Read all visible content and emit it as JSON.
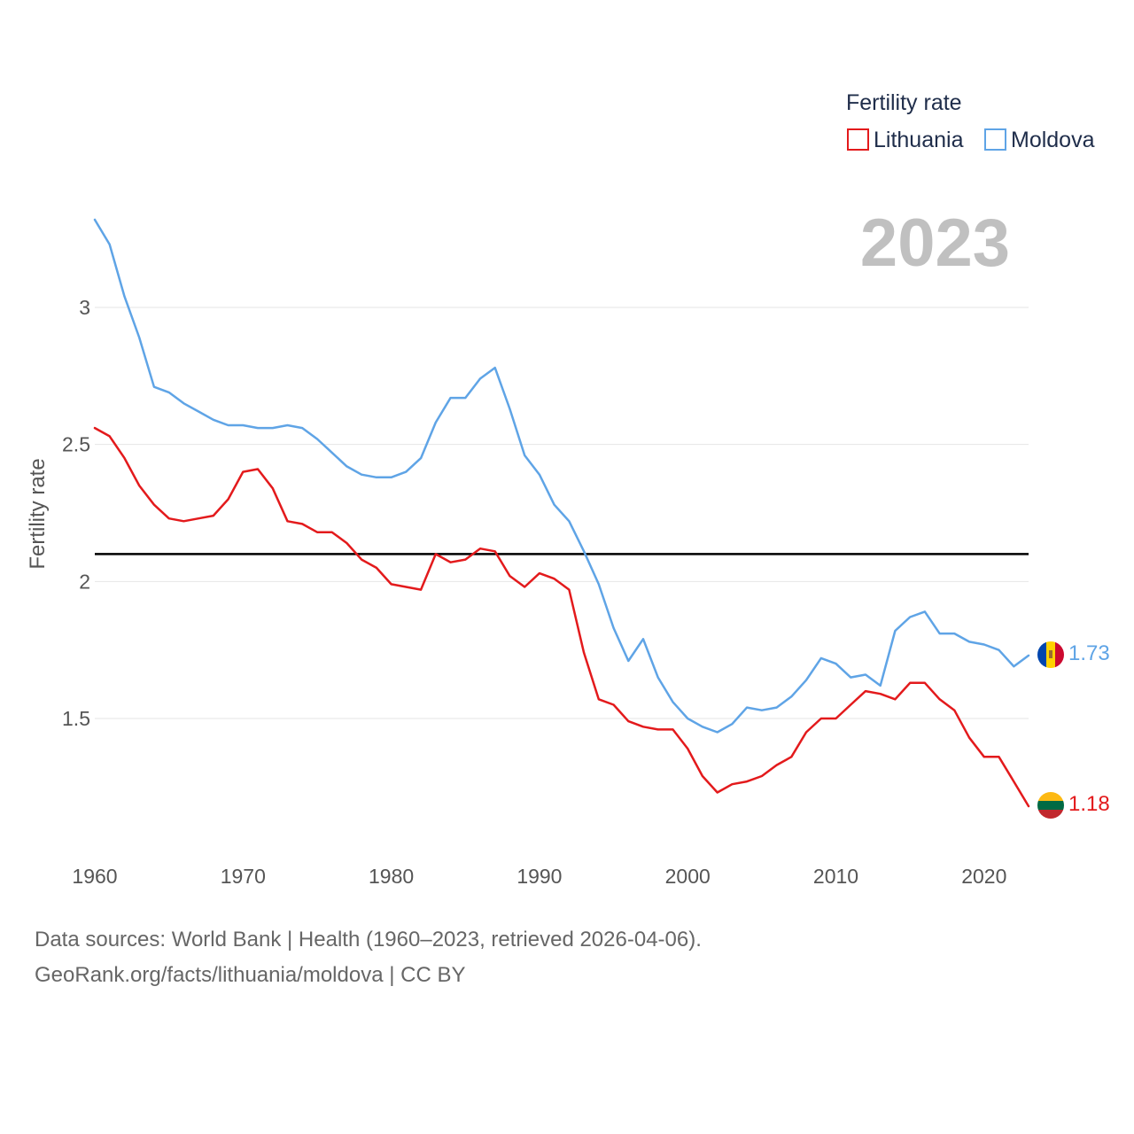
{
  "chart_data": {
    "type": "line",
    "legend_title": "Fertility rate",
    "legend_position": "top-right",
    "ylabel": "Fertility rate",
    "xlabel": "",
    "year_label": "2023",
    "xlim": [
      1960,
      2023
    ],
    "ylim": [
      1.0,
      3.35
    ],
    "x_ticks": [
      1960,
      1970,
      1980,
      1990,
      2000,
      2010,
      2020
    ],
    "y_ticks": [
      1.5,
      2,
      2.5,
      3
    ],
    "y_tick_labels": [
      "1.5",
      "2",
      "2.5",
      "3"
    ],
    "x_tick_labels": [
      "1960",
      "1970",
      "1980",
      "1990",
      "2000",
      "2010",
      "2020"
    ],
    "grid": true,
    "reference_line": {
      "value": 2.1,
      "color": "#000000"
    },
    "x": [
      1960,
      1961,
      1962,
      1963,
      1964,
      1965,
      1966,
      1967,
      1968,
      1969,
      1970,
      1971,
      1972,
      1973,
      1974,
      1975,
      1976,
      1977,
      1978,
      1979,
      1980,
      1981,
      1982,
      1983,
      1984,
      1985,
      1986,
      1987,
      1988,
      1989,
      1990,
      1991,
      1992,
      1993,
      1994,
      1995,
      1996,
      1997,
      1998,
      1999,
      2000,
      2001,
      2002,
      2003,
      2004,
      2005,
      2006,
      2007,
      2008,
      2009,
      2010,
      2011,
      2012,
      2013,
      2014,
      2015,
      2016,
      2017,
      2018,
      2019,
      2020,
      2021,
      2022,
      2023
    ],
    "series": [
      {
        "name": "Lithuania",
        "color": "#e31a1c",
        "end_label": "1.18",
        "values": [
          2.56,
          2.53,
          2.45,
          2.35,
          2.28,
          2.23,
          2.22,
          2.23,
          2.24,
          2.3,
          2.4,
          2.41,
          2.34,
          2.22,
          2.21,
          2.18,
          2.18,
          2.14,
          2.08,
          2.05,
          1.99,
          1.98,
          1.97,
          2.1,
          2.07,
          2.08,
          2.12,
          2.11,
          2.02,
          1.98,
          2.03,
          2.01,
          1.97,
          1.74,
          1.57,
          1.55,
          1.49,
          1.47,
          1.46,
          1.46,
          1.39,
          1.29,
          1.23,
          1.26,
          1.27,
          1.29,
          1.33,
          1.36,
          1.45,
          1.5,
          1.5,
          1.55,
          1.6,
          1.59,
          1.57,
          1.63,
          1.63,
          1.57,
          1.53,
          1.43,
          1.36,
          1.36,
          1.27,
          1.18
        ]
      },
      {
        "name": "Moldova",
        "color": "#5fa4e6",
        "end_label": "1.73",
        "values": [
          3.32,
          3.23,
          3.04,
          2.89,
          2.71,
          2.69,
          2.65,
          2.62,
          2.59,
          2.57,
          2.57,
          2.56,
          2.56,
          2.57,
          2.56,
          2.52,
          2.47,
          2.42,
          2.39,
          2.38,
          2.38,
          2.4,
          2.45,
          2.58,
          2.67,
          2.67,
          2.74,
          2.78,
          2.63,
          2.46,
          2.39,
          2.28,
          2.22,
          2.11,
          1.99,
          1.83,
          1.71,
          1.79,
          1.65,
          1.56,
          1.5,
          1.47,
          1.45,
          1.48,
          1.54,
          1.53,
          1.54,
          1.58,
          1.64,
          1.72,
          1.7,
          1.65,
          1.66,
          1.62,
          1.82,
          1.87,
          1.89,
          1.81,
          1.81,
          1.78,
          1.77,
          1.75,
          1.69,
          1.73
        ]
      }
    ]
  },
  "footer": {
    "source_line": "Data sources: World Bank | Health (1960–2023, retrieved 2026-04-06).",
    "credit_line": "GeoRank.org/facts/lithuania/moldova | CC BY"
  },
  "icons": {
    "lithuania_flag": "lithuania-flag-icon",
    "moldova_flag": "moldova-flag-icon"
  }
}
